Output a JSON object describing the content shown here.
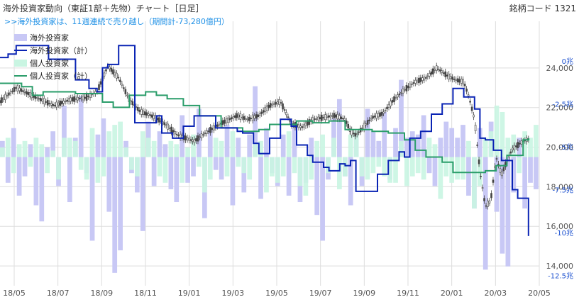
{
  "header": {
    "title": "海外投資家動向（東証1部＋先物）チャート［日足］",
    "code_label": "銘柄コード 1321"
  },
  "chart_data": {
    "type": "line",
    "annotation": ">>海外投資家は、11週連続で売り越し（期間計-73,280億円）",
    "colors": {
      "foreign_bar": "#c8c8f5",
      "foreign_cum": "#0a24b4",
      "individual_bar": "#c9f5e2",
      "individual_cum": "#2a9d6a",
      "price": "#444444",
      "grid": "#dddddd"
    },
    "legend": [
      {
        "label": "海外投資家",
        "kind": "bar",
        "color": "#c8c8f5"
      },
      {
        "label": "海外投資家（計）",
        "kind": "line",
        "color": "#0a24b4"
      },
      {
        "label": "個人投資家",
        "kind": "bar",
        "color": "#c9f5e2"
      },
      {
        "label": "個人投資家（計）",
        "kind": "line",
        "color": "#2a9d6a"
      }
    ],
    "x_ticks": [
      "18/05",
      "18/07",
      "18/09",
      "18/11",
      "19/01",
      "19/03",
      "19/05",
      "19/07",
      "19/09",
      "19/11",
      "20/01",
      "20/03",
      "20/05"
    ],
    "price_axis": {
      "ticks": [
        "24,000",
        "22,000",
        "20,000",
        "18,000",
        "16,000",
        "14,000"
      ],
      "values": [
        24000,
        22000,
        20000,
        18000,
        16000,
        14000
      ],
      "range": [
        13000,
        26000
      ]
    },
    "cum_axis": {
      "ticks": [
        "0兆",
        "-2.5兆",
        "-5兆",
        "-7.5兆",
        "-10兆",
        "-12.5兆"
      ],
      "values": [
        0,
        -2.5,
        -5,
        -7.5,
        -10,
        -12.5
      ],
      "range": [
        -13.1,
        1.9
      ]
    },
    "weekly_net_axis_range": [
      -4,
      4
    ],
    "foreign_weekly": [
      0.5,
      -0.8,
      0.9,
      -1.2,
      -0.6,
      0.4,
      -1.5,
      -2.0,
      0.3,
      0.8,
      -0.9,
      1.6,
      -1.4,
      0.6,
      1.9,
      -0.5,
      -2.6,
      0.7,
      1.2,
      -1.7,
      -3.6,
      -2.9,
      0.5,
      -0.5,
      -1.1,
      -2.3,
      1.1,
      -0.9,
      0.8,
      0.4,
      -1.0,
      -1.4,
      1.3,
      -0.8,
      -0.6,
      1.5,
      -1.9,
      0.9,
      -0.4,
      -0.7,
      1.0,
      -1.5,
      0.6,
      -1.1,
      0.7,
      2.2,
      -1.3,
      0.9,
      -0.5,
      -0.9,
      0.7,
      -1.2,
      1.0,
      -1.4,
      -0.8,
      0.6,
      -1.8,
      -2.6,
      -0.7,
      1.2,
      1.8,
      -0.6,
      -1.5,
      0.7,
      -0.9,
      1.5,
      0.8,
      0.5,
      1.4,
      -0.7,
      0.9,
      2.4,
      0.6,
      0.8,
      0.7,
      1.3,
      -0.5,
      -0.9,
      0.6,
      1.1,
      0.9,
      0.6,
      1.0,
      -1.2,
      -1.6,
      0.9,
      -3.5,
      1.1,
      -1.7,
      -3.0,
      -3.4,
      -1.1,
      0.6,
      -1.6,
      -0.8,
      -1.0
    ],
    "individual_weekly": [
      0.3,
      0.6,
      -0.5,
      0.4,
      0.5,
      -0.3,
      0.6,
      0.4,
      -0.5,
      0.2,
      -0.7,
      0.6,
      0.6,
      0.5,
      -0.4,
      -0.7,
      0.9,
      -0.8,
      -0.6,
      0.8,
      1.0,
      1.1,
      0.3,
      -0.4,
      -0.6,
      0.8,
      0.6,
      0.5,
      -0.6,
      -0.8,
      0.5,
      0.4,
      -0.8,
      0.3,
      0.7,
      -0.3,
      -1.1,
      -0.7,
      0.6,
      0.5,
      -0.6,
      0.8,
      -0.3,
      -0.5,
      -0.7,
      0.4,
      0.5,
      -1.1,
      -0.6,
      -0.8,
      -0.6,
      0.8,
      -0.5,
      -0.9,
      -1.2,
      -0.7,
      0.5,
      0.7,
      -0.5,
      0.6,
      -1.0,
      -0.6,
      0.7,
      0.8,
      -0.6,
      -0.7,
      -0.5,
      -0.3,
      -0.6,
      -0.8,
      -0.8,
      0.5,
      -0.9,
      -0.6,
      -0.5,
      -0.7,
      0.6,
      0.4,
      -1.3,
      -0.6,
      -0.8,
      -0.7,
      -0.7,
      0.5,
      -1.6,
      -0.9,
      0.6,
      0.8,
      1.6,
      1.4,
      0.6,
      0.7,
      -0.5,
      0.8,
      0.6,
      1.0
    ],
    "foreign_cum": {
      "x": [
        0,
        0.015,
        0.03,
        0.06,
        0.09,
        0.1,
        0.12,
        0.14,
        0.16,
        0.165,
        0.18,
        0.19,
        0.2,
        0.22,
        0.23,
        0.25,
        0.27,
        0.29,
        0.3,
        0.32,
        0.34,
        0.36,
        0.4,
        0.43,
        0.44,
        0.45,
        0.47,
        0.48,
        0.5,
        0.5,
        0.52,
        0.54,
        0.55,
        0.57,
        0.58,
        0.6,
        0.61,
        0.63,
        0.64,
        0.65,
        0.66,
        0.68,
        0.7,
        0.72,
        0.74,
        0.75,
        0.76,
        0.78,
        0.8,
        0.82,
        0.84,
        0.855,
        0.86,
        0.88,
        0.89,
        0.9,
        0.915,
        0.93,
        0.95,
        0.96,
        0.98
      ],
      "y": [
        0.2,
        0.4,
        0.9,
        0.9,
        0.1,
        0.1,
        0.1,
        -1.1,
        -1.1,
        -1.6,
        -1.8,
        -0.4,
        -0.2,
        0.9,
        0.9,
        -3.6,
        -3.6,
        -3.2,
        -4.2,
        -4.5,
        -3.8,
        -3.2,
        -3.9,
        -3.9,
        -4.1,
        -4.2,
        -4.8,
        -5.4,
        -4.5,
        -4.5,
        -3.4,
        -3.8,
        -4.9,
        -5.5,
        -5.9,
        -6.2,
        -6.4,
        -6.0,
        -6.1,
        -5.8,
        -7.6,
        -7.6,
        -6.6,
        -5.8,
        -5.3,
        -5.6,
        -4.5,
        -4.1,
        -3.1,
        -2.5,
        -1.6,
        -1.6,
        -2.1,
        -2.8,
        -4.5,
        -4.6,
        -5.2,
        -5.8,
        -7.5,
        -8.0,
        -10.2
      ]
    },
    "individual_cum": {
      "x": [
        0,
        0.04,
        0.06,
        0.08,
        0.11,
        0.14,
        0.16,
        0.19,
        0.21,
        0.24,
        0.27,
        0.29,
        0.31,
        0.34,
        0.37,
        0.41,
        0.45,
        0.48,
        0.5,
        0.52,
        0.55,
        0.58,
        0.61,
        0.64,
        0.66,
        0.69,
        0.72,
        0.75,
        0.77,
        0.79,
        0.82,
        0.84,
        0.87,
        0.9,
        0.92,
        0.94,
        0.97,
        0.98
      ],
      "y": [
        -1.3,
        -1.5,
        -2.0,
        -1.8,
        -1.8,
        -1.9,
        -1.9,
        -2.4,
        -2.7,
        -2.0,
        -1.8,
        -2.0,
        -2.2,
        -2.6,
        -3.2,
        -3.9,
        -4.1,
        -4.0,
        -3.7,
        -3.7,
        -3.5,
        -3.6,
        -3.5,
        -4.0,
        -4.0,
        -4.1,
        -4.2,
        -4.6,
        -5.2,
        -5.6,
        -5.9,
        -6.5,
        -6.5,
        -6.4,
        -6.1,
        -5.5,
        -4.6,
        -4.5
      ]
    },
    "price_series": {
      "x": [
        0,
        0.03,
        0.06,
        0.1,
        0.13,
        0.16,
        0.18,
        0.2,
        0.22,
        0.24,
        0.26,
        0.28,
        0.3,
        0.33,
        0.36,
        0.38,
        0.41,
        0.44,
        0.46,
        0.48,
        0.5,
        0.52,
        0.54,
        0.56,
        0.58,
        0.6,
        0.62,
        0.64,
        0.65,
        0.66,
        0.67,
        0.69,
        0.71,
        0.73,
        0.75,
        0.77,
        0.79,
        0.81,
        0.83,
        0.845,
        0.86,
        0.87,
        0.88,
        0.89,
        0.9,
        0.91,
        0.92,
        0.93,
        0.94,
        0.95,
        0.96,
        0.97,
        0.98
      ],
      "y": [
        22300,
        23000,
        22600,
        22100,
        22400,
        22500,
        22800,
        24100,
        23500,
        22400,
        21800,
        21600,
        21300,
        20600,
        20300,
        20700,
        21200,
        21600,
        21400,
        21600,
        22100,
        22300,
        21200,
        21000,
        21400,
        21500,
        21600,
        21400,
        20800,
        20600,
        20900,
        21500,
        21700,
        22400,
        22900,
        23300,
        23500,
        24000,
        23600,
        23400,
        23300,
        22500,
        21400,
        18800,
        17000,
        17300,
        19500,
        18600,
        19300,
        19900,
        20100,
        20300,
        20400
      ]
    }
  }
}
